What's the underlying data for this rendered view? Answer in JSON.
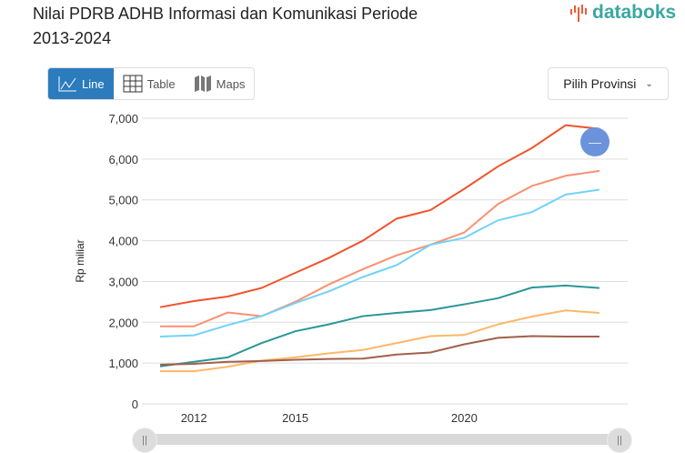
{
  "header": {
    "title": "Nilai PDRB ADHB Informasi dan Komunikasi Periode 2013-2024",
    "logo_text": "databoks"
  },
  "tabs": [
    {
      "label": "Line",
      "icon": "line-chart-icon",
      "active": true
    },
    {
      "label": "Table",
      "icon": "table-grid-icon"
    },
    {
      "label": "Maps",
      "icon": "map-icon"
    }
  ],
  "province_select": {
    "label": "Pilih Provinsi",
    "icon": "chevron-down-icon"
  },
  "colors": {
    "accent": "#2b7bbd",
    "logo": "#3aa8a0"
  },
  "chart_data": {
    "type": "line",
    "ylabel": "Rp miliar",
    "ylim": [
      0,
      7000
    ],
    "yticks": [
      "0",
      "1,000",
      "2,000",
      "3,000",
      "4,000",
      "5,000",
      "6,000",
      "7,000"
    ],
    "ytick_values": [
      0,
      1000,
      2000,
      3000,
      4000,
      5000,
      6000,
      7000
    ],
    "xticks": [
      "2012",
      "2015",
      "2020"
    ],
    "xtick_values": [
      2012,
      2015,
      2020
    ],
    "x": [
      2011,
      2012,
      2013,
      2014,
      2015,
      2016,
      2017,
      2018,
      2019,
      2020,
      2021,
      2022,
      2023,
      2024
    ],
    "grid": true,
    "legend": "none",
    "series": [
      {
        "color": "#f0532d",
        "values": [
          2370,
          2520,
          2630,
          2840,
          3210,
          3580,
          4000,
          4540,
          4750,
          5270,
          5820,
          6270,
          6830,
          6740
        ]
      },
      {
        "color": "#fb9070",
        "values": [
          1900,
          1900,
          2240,
          2150,
          2500,
          2930,
          3300,
          3640,
          3900,
          4200,
          4900,
          5340,
          5590,
          5710
        ]
      },
      {
        "color": "#72d2f8",
        "values": [
          1650,
          1680,
          1930,
          2150,
          2470,
          2760,
          3110,
          3400,
          3900,
          4070,
          4500,
          4700,
          5130,
          5250
        ]
      },
      {
        "color": "#2a9696",
        "values": [
          920,
          1030,
          1140,
          1490,
          1780,
          1950,
          2150,
          2230,
          2300,
          2440,
          2590,
          2850,
          2900,
          2840
        ]
      },
      {
        "color": "#fdb766",
        "values": [
          800,
          800,
          910,
          1060,
          1140,
          1240,
          1320,
          1490,
          1660,
          1690,
          1950,
          2140,
          2290,
          2230
        ]
      },
      {
        "color": "#a0604a",
        "values": [
          960,
          980,
          1030,
          1050,
          1080,
          1100,
          1110,
          1210,
          1260,
          1460,
          1620,
          1660,
          1650,
          1650
        ]
      }
    ]
  },
  "slider": {
    "range": [
      0,
      1
    ]
  },
  "fab": {
    "icon": "minus-icon"
  }
}
